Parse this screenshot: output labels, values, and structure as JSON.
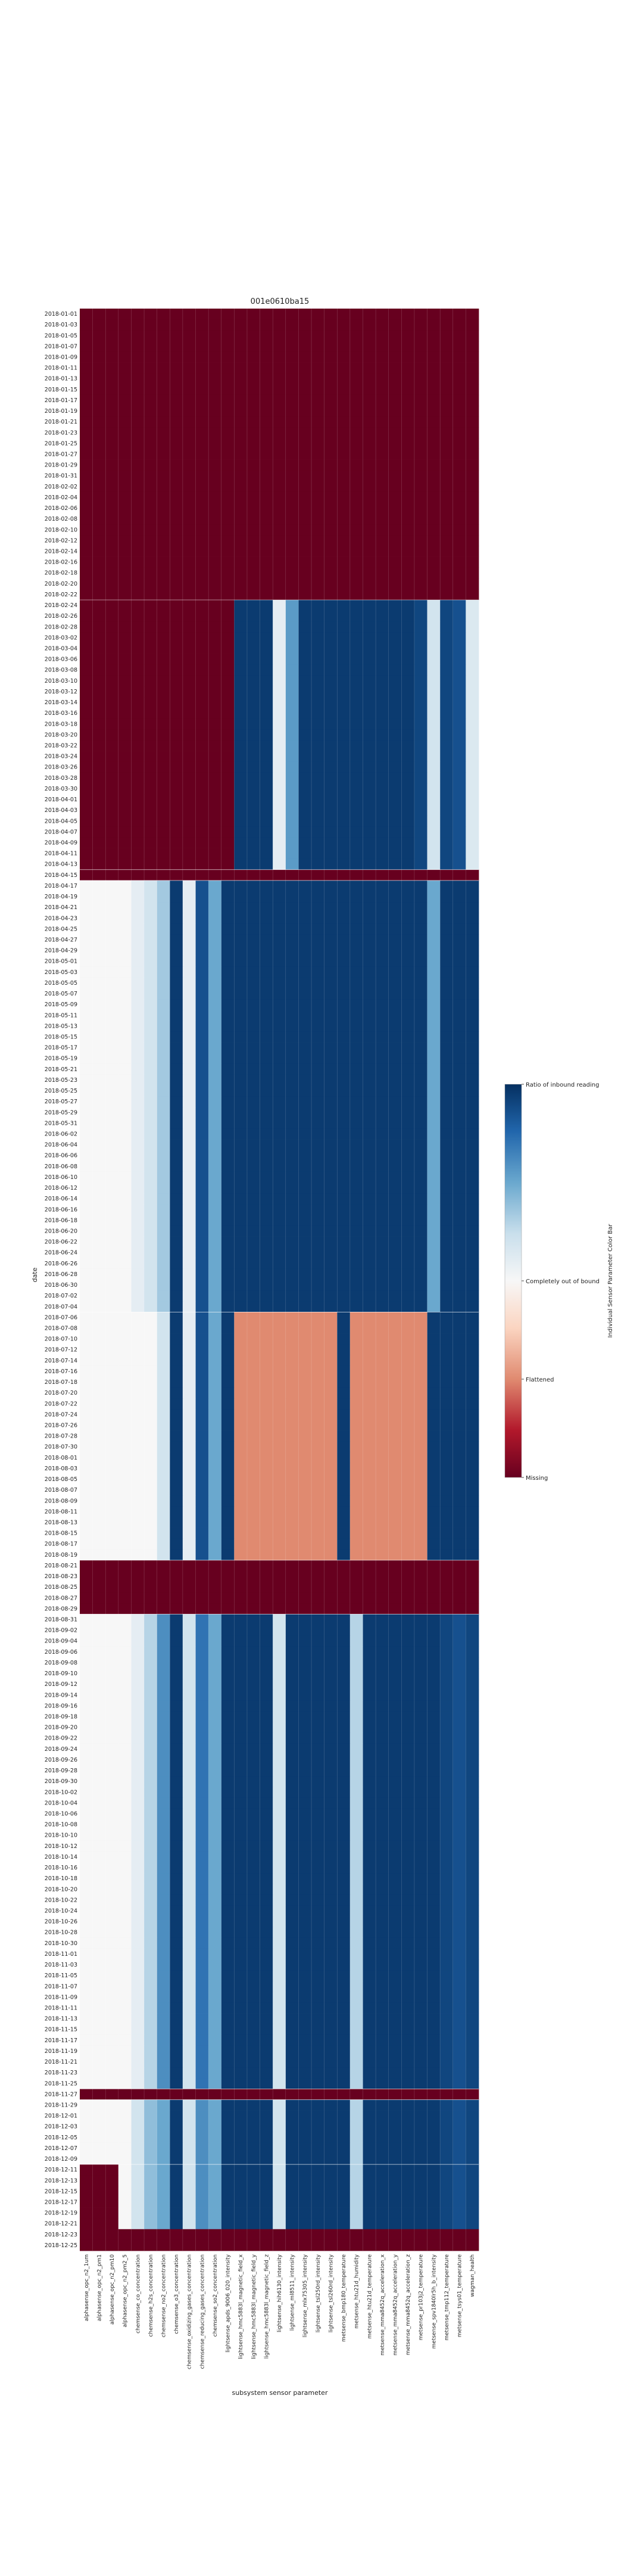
{
  "chart_data": {
    "type": "heatmap",
    "title": "001e0610ba15",
    "xlabel": "subsystem sensor parameter",
    "ylabel": "date",
    "columns": [
      "alphasense_opc_n2_1um",
      "alphasense_opc_n2_pm1",
      "alphasense_opc_n2_pm10",
      "alphasense_opc_n2_pm2_5",
      "chemsense_co_concentration",
      "chemsense_h2s_concentration",
      "chemsense_no2_concentration",
      "chemsense_o3_concentration",
      "chemsense_oxidizing_gases_concentration",
      "chemsense_reducing_gases_concentration",
      "chemsense_so2_concentration",
      "lightsense_apds_9006_020_intensity",
      "lightsense_hmc5883l_magnetic_field_x",
      "lightsense_hmc5883l_magnetic_field_y",
      "lightsense_hmc5883l_magnetic_field_z",
      "lightsense_hih6130_intensity",
      "lightsense_ml8511_intensity",
      "lightsense_mlx75305_intensity",
      "lightsense_tsl250rd_intensity",
      "lightsense_tsl260rd_intensity",
      "metsense_bmp180_temperature",
      "metsense_htu21d_humidity",
      "metsense_htu21d_temperature",
      "metsense_mma8452q_acceleration_x",
      "metsense_mma8452q_acceleration_y",
      "metsense_mma8452q_acceleration_z",
      "metsense_pr103j2_temperature",
      "metsense_spv1840lr5h_b_intensity",
      "metsense_tmp112_temperature",
      "metsense_tsys01_temperature",
      "wagman_health"
    ],
    "dates": [
      "2018-01-01",
      "2018-01-03",
      "2018-01-05",
      "2018-01-07",
      "2018-01-09",
      "2018-01-11",
      "2018-01-13",
      "2018-01-15",
      "2018-01-17",
      "2018-01-19",
      "2018-01-21",
      "2018-01-23",
      "2018-01-25",
      "2018-01-27",
      "2018-01-29",
      "2018-01-31",
      "2018-02-02",
      "2018-02-04",
      "2018-02-06",
      "2018-02-08",
      "2018-02-10",
      "2018-02-12",
      "2018-02-14",
      "2018-02-16",
      "2018-02-18",
      "2018-02-20",
      "2018-02-22",
      "2018-02-24",
      "2018-02-26",
      "2018-02-28",
      "2018-03-02",
      "2018-03-04",
      "2018-03-06",
      "2018-03-08",
      "2018-03-10",
      "2018-03-12",
      "2018-03-14",
      "2018-03-16",
      "2018-03-18",
      "2018-03-20",
      "2018-03-22",
      "2018-03-24",
      "2018-03-26",
      "2018-03-28",
      "2018-03-30",
      "2018-04-01",
      "2018-04-03",
      "2018-04-05",
      "2018-04-07",
      "2018-04-09",
      "2018-04-11",
      "2018-04-13",
      "2018-04-15",
      "2018-04-17",
      "2018-04-19",
      "2018-04-21",
      "2018-04-23",
      "2018-04-25",
      "2018-04-27",
      "2018-04-29",
      "2018-05-01",
      "2018-05-03",
      "2018-05-05",
      "2018-05-07",
      "2018-05-09",
      "2018-05-11",
      "2018-05-13",
      "2018-05-15",
      "2018-05-17",
      "2018-05-19",
      "2018-05-21",
      "2018-05-23",
      "2018-05-25",
      "2018-05-27",
      "2018-05-29",
      "2018-05-31",
      "2018-06-02",
      "2018-06-04",
      "2018-06-06",
      "2018-06-08",
      "2018-06-10",
      "2018-06-12",
      "2018-06-14",
      "2018-06-16",
      "2018-06-18",
      "2018-06-20",
      "2018-06-22",
      "2018-06-24",
      "2018-06-26",
      "2018-06-28",
      "2018-06-30",
      "2018-07-02",
      "2018-07-04",
      "2018-07-06",
      "2018-07-08",
      "2018-07-10",
      "2018-07-12",
      "2018-07-14",
      "2018-07-16",
      "2018-07-18",
      "2018-07-20",
      "2018-07-22",
      "2018-07-24",
      "2018-07-26",
      "2018-07-28",
      "2018-07-30",
      "2018-08-01",
      "2018-08-03",
      "2018-08-05",
      "2018-08-07",
      "2018-08-09",
      "2018-08-11",
      "2018-08-13",
      "2018-08-15",
      "2018-08-17",
      "2018-08-19",
      "2018-08-21",
      "2018-08-23",
      "2018-08-25",
      "2018-08-27",
      "2018-08-29",
      "2018-08-31",
      "2018-09-02",
      "2018-09-04",
      "2018-09-06",
      "2018-09-08",
      "2018-09-10",
      "2018-09-12",
      "2018-09-14",
      "2018-09-16",
      "2018-09-18",
      "2018-09-20",
      "2018-09-22",
      "2018-09-24",
      "2018-09-26",
      "2018-09-28",
      "2018-09-30",
      "2018-10-02",
      "2018-10-04",
      "2018-10-06",
      "2018-10-08",
      "2018-10-10",
      "2018-10-12",
      "2018-10-14",
      "2018-10-16",
      "2018-10-18",
      "2018-10-20",
      "2018-10-22",
      "2018-10-24",
      "2018-10-26",
      "2018-10-28",
      "2018-10-30",
      "2018-11-01",
      "2018-11-03",
      "2018-11-05",
      "2018-11-07",
      "2018-11-09",
      "2018-11-11",
      "2018-11-13",
      "2018-11-15",
      "2018-11-17",
      "2018-11-19",
      "2018-11-21",
      "2018-11-23",
      "2018-11-25",
      "2018-11-27",
      "2018-11-29",
      "2018-12-01",
      "2018-12-03",
      "2018-12-05",
      "2018-12-07",
      "2018-12-09",
      "2018-12-11",
      "2018-12-13",
      "2018-12-15",
      "2018-12-17",
      "2018-12-19",
      "2018-12-21",
      "2018-12-23",
      "2018-12-25"
    ],
    "value_range": [
      -1,
      1
    ],
    "colorbar": {
      "label": "Individual Sensor Parameter Color Bar",
      "ticks": [
        {
          "value": 1.0,
          "label": "Ratio of inbound reading"
        },
        {
          "value": 0.0,
          "label": "Completely out of bound"
        },
        {
          "value": -0.5,
          "label": "Flattened"
        },
        {
          "value": -1.0,
          "label": "Missing"
        }
      ]
    },
    "colors": {
      "missing": "#67001f",
      "flattened": "#e08a70",
      "out_of_bound": "#f7f7f7",
      "inbound": "#053061"
    },
    "grid": false,
    "periods": [
      {
        "rows": [
          0,
          26
        ],
        "description": "all missing",
        "values": [
          -1,
          -1,
          -1,
          -1,
          -1,
          -1,
          -1,
          -1,
          -1,
          -1,
          -1,
          -1,
          -1,
          -1,
          -1,
          -1,
          -1,
          -1,
          -1,
          -1,
          -1,
          -1,
          -1,
          -1,
          -1,
          -1,
          -1,
          -1,
          -1,
          -1,
          -1
        ]
      },
      {
        "rows": [
          27,
          51
        ],
        "values": [
          -1,
          -1,
          -1,
          -1,
          -1,
          -1,
          -1,
          -1,
          -1,
          -1,
          -1,
          -1,
          0.95,
          0.95,
          0.95,
          0.1,
          0.55,
          0.95,
          0.95,
          0.95,
          0.95,
          0.95,
          0.95,
          0.95,
          0.95,
          0.95,
          0.9,
          0.2,
          0.9,
          0.85,
          0.15
        ]
      },
      {
        "rows": [
          52,
          52
        ],
        "values": [
          -1,
          -1,
          -1,
          -1,
          -1,
          -1,
          -1,
          -1,
          -1,
          -1,
          -1,
          -1,
          -1,
          -1,
          -1,
          -1,
          -1,
          -1,
          -1,
          -1,
          -1,
          -1,
          -1,
          -1,
          -1,
          -1,
          -1,
          -1,
          -1,
          -1,
          -1
        ]
      },
      {
        "rows": [
          53,
          92
        ],
        "values": [
          0,
          0,
          0,
          0,
          0.1,
          0.2,
          0.35,
          0.95,
          0.1,
          0.85,
          0.5,
          0.95,
          0.95,
          0.95,
          0.95,
          0.95,
          0.95,
          0.95,
          0.95,
          0.95,
          0.95,
          0.95,
          0.95,
          0.95,
          0.95,
          0.95,
          0.95,
          0.5,
          0.95,
          0.95,
          0.95
        ]
      },
      {
        "rows": [
          93,
          115
        ],
        "values": [
          0,
          0,
          0,
          0,
          0,
          0,
          0.2,
          0.95,
          0.1,
          0.85,
          0.5,
          0.95,
          -0.5,
          -0.5,
          -0.5,
          -0.5,
          -0.5,
          -0.5,
          -0.5,
          -0.5,
          0.95,
          -0.5,
          -0.5,
          -0.5,
          -0.5,
          -0.5,
          -0.5,
          0.95,
          0.95,
          0.95,
          0.95
        ]
      },
      {
        "rows": [
          116,
          120
        ],
        "values": [
          -1,
          -1,
          -1,
          -1,
          -1,
          -1,
          -1,
          -1,
          -1,
          -1,
          -1,
          -1,
          -1,
          -1,
          -1,
          -1,
          -1,
          -1,
          -1,
          -1,
          -1,
          -1,
          -1,
          -1,
          -1,
          -1,
          -1,
          -1,
          -1,
          -1,
          -1
        ]
      },
      {
        "rows": [
          121,
          164
        ],
        "values": [
          0,
          0,
          0,
          0,
          0.1,
          0.3,
          0.6,
          0.95,
          0.2,
          0.7,
          0.5,
          0.95,
          0.95,
          0.95,
          0.95,
          0.2,
          0.95,
          0.95,
          0.95,
          0.95,
          0.95,
          0.3,
          0.95,
          0.95,
          0.95,
          0.95,
          0.95,
          0.95,
          0.9,
          0.85,
          0.9
        ]
      },
      {
        "rows": [
          165,
          165
        ],
        "values": [
          -1,
          -1,
          -1,
          -1,
          -1,
          -1,
          -1,
          -1,
          -1,
          -1,
          -1,
          -1,
          -1,
          -1,
          -1,
          -1,
          -1,
          -1,
          -1,
          -1,
          -1,
          -1,
          -1,
          -1,
          -1,
          -1,
          -1,
          -1,
          -1,
          -1,
          -1
        ]
      },
      {
        "rows": [
          166,
          171
        ],
        "values": [
          0,
          0,
          0,
          0,
          0.2,
          0.4,
          0.5,
          0.95,
          0.2,
          0.6,
          0.5,
          0.95,
          0.95,
          0.95,
          0.95,
          0.2,
          0.95,
          0.95,
          0.95,
          0.95,
          0.95,
          0.3,
          0.95,
          0.95,
          0.95,
          0.95,
          0.95,
          0.95,
          0.9,
          0.85,
          0.9
        ]
      },
      {
        "rows": [
          172,
          177
        ],
        "values": [
          -1,
          -1,
          -1,
          0,
          0.2,
          0.4,
          0.5,
          0.95,
          0.2,
          0.6,
          0.5,
          0.95,
          0.95,
          0.95,
          0.95,
          0.2,
          0.95,
          0.95,
          0.95,
          0.95,
          0.95,
          0.3,
          0.95,
          0.95,
          0.95,
          0.95,
          0.95,
          0.95,
          0.9,
          0.85,
          0.9
        ]
      }
    ]
  }
}
